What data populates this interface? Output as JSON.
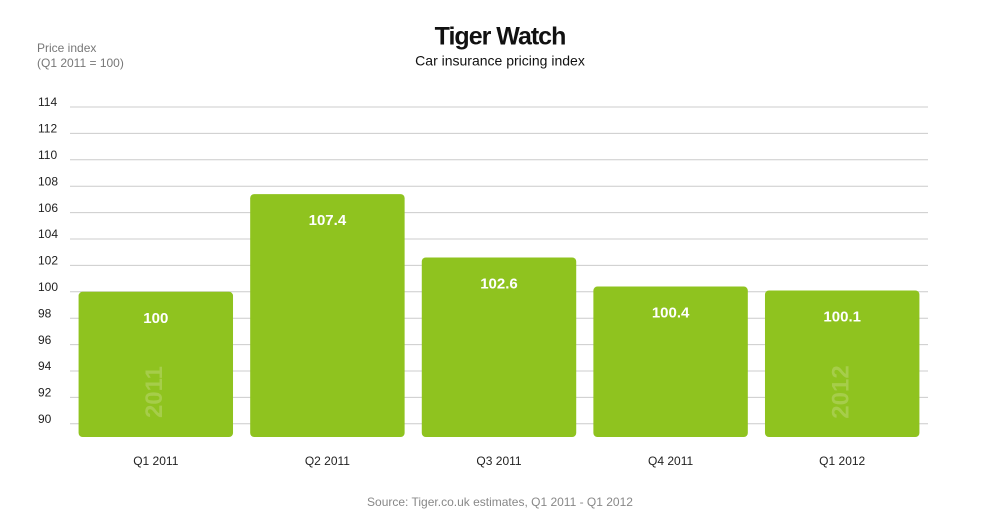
{
  "chart_data": {
    "type": "bar",
    "title": "Tiger Watch",
    "subtitle": "Car insurance pricing index",
    "y_label": [
      "Price index",
      "(Q1 2011 = 100)"
    ],
    "categories": [
      "Q1 2011",
      "Q2 2011",
      "Q3 2011",
      "Q4 2011",
      "Q1 2012"
    ],
    "values": [
      100,
      107.4,
      102.6,
      100.4,
      100.1
    ],
    "bar_watermarks": [
      "2011",
      null,
      null,
      null,
      "2012"
    ],
    "color": "#8fc31f",
    "ylim": [
      89,
      114
    ],
    "yticks": [
      90,
      92,
      94,
      96,
      98,
      100,
      102,
      104,
      106,
      108,
      110,
      112,
      114
    ],
    "grid": true,
    "source": "Source: Tiger.co.uk estimates, Q1 2011 - Q1 2012"
  }
}
